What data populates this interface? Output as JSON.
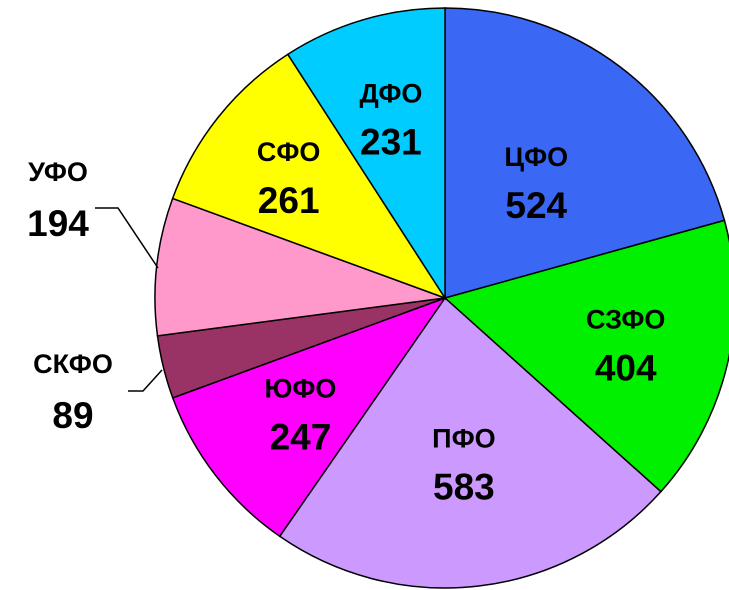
{
  "chart_data": {
    "type": "pie",
    "title": "",
    "slices": [
      {
        "name": "ЦФО",
        "value": 524,
        "color": "#3A67F4",
        "label_outside": false
      },
      {
        "name": "СЗФО",
        "value": 404,
        "color": "#00F000",
        "label_outside": false
      },
      {
        "name": "ПФО",
        "value": 583,
        "color": "#CC99FF",
        "label_outside": false
      },
      {
        "name": "ЮФО",
        "value": 247,
        "color": "#FF00FF",
        "label_outside": false
      },
      {
        "name": "СКФО",
        "value": 89,
        "color": "#993366",
        "label_outside": true
      },
      {
        "name": "УФО",
        "value": 194,
        "color": "#FF99CC",
        "label_outside": true
      },
      {
        "name": "СФО",
        "value": 261,
        "color": "#FFFF00",
        "label_outside": false
      },
      {
        "name": "ДФО",
        "value": 231,
        "color": "#00CCFF",
        "label_outside": false
      }
    ],
    "start_angle": "12 o'clock",
    "direction": "clockwise",
    "legend": "none"
  }
}
